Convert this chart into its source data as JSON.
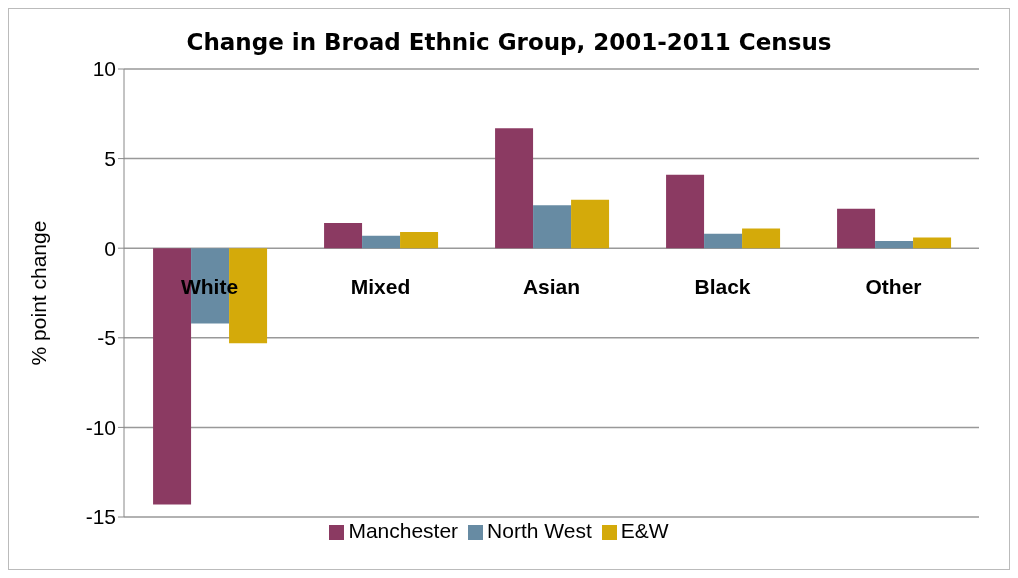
{
  "chart_data": {
    "type": "bar",
    "title": "Change in Broad Ethnic Group, 2001-2011 Census",
    "ylabel": "% point change",
    "categories": [
      "White",
      "Mixed",
      "Asian",
      "Black",
      "Other"
    ],
    "series": [
      {
        "name": "Manchester",
        "color": "#8b3a62",
        "values": [
          -14.3,
          1.4,
          6.7,
          4.1,
          2.2
        ]
      },
      {
        "name": "North West",
        "color": "#678ba3",
        "values": [
          -4.2,
          0.7,
          2.4,
          0.8,
          0.4
        ]
      },
      {
        "name": "E&W",
        "color": "#d4aa0a",
        "values": [
          -5.3,
          0.9,
          2.7,
          1.1,
          0.6
        ]
      }
    ],
    "ylim": [
      -15,
      10
    ],
    "yticks": [
      -15,
      -10,
      -5,
      0,
      5,
      10
    ],
    "grid": "y",
    "legend": "bottom"
  }
}
